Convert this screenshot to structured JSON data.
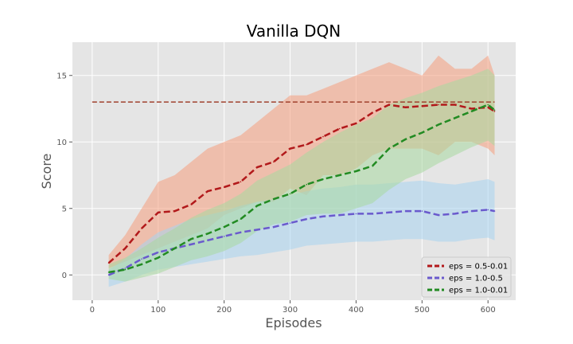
{
  "chart_data": {
    "type": "line",
    "title": "Vanilla DQN",
    "xlabel": "Episodes",
    "ylabel": "Score",
    "xlim": [
      -30,
      642
    ],
    "ylim": [
      -1.9,
      17.5
    ],
    "x_ticks": [
      0,
      100,
      200,
      300,
      400,
      500,
      600
    ],
    "y_ticks": [
      0,
      5,
      10,
      15
    ],
    "grid": true,
    "background": "#e5e5e5",
    "legend_position": "bottom-right",
    "reference_line": {
      "y": 13,
      "color": "#a0412d",
      "style": "dashed"
    },
    "series": [
      {
        "name": "eps = 0.5-0.01",
        "color": "#b2191b",
        "band_color": "#f59f7e",
        "x": [
          25,
          50,
          75,
          100,
          125,
          150,
          175,
          200,
          225,
          250,
          275,
          300,
          325,
          350,
          375,
          400,
          425,
          450,
          475,
          500,
          525,
          550,
          575,
          600,
          610
        ],
        "y": [
          0.9,
          2.0,
          3.5,
          4.7,
          4.8,
          5.3,
          6.3,
          6.6,
          7.0,
          8.1,
          8.5,
          9.5,
          9.8,
          10.4,
          11.0,
          11.4,
          12.2,
          12.8,
          12.6,
          12.7,
          12.8,
          12.8,
          12.5,
          12.6,
          12.3
        ],
        "upper": [
          1.5,
          3.0,
          5.0,
          7.0,
          7.5,
          8.5,
          9.5,
          10.0,
          10.5,
          11.5,
          12.5,
          13.5,
          13.5,
          14.0,
          14.5,
          15.0,
          15.5,
          16.0,
          15.5,
          15.0,
          16.5,
          15.5,
          15.5,
          16.5,
          15.0
        ],
        "lower": [
          0.5,
          1.0,
          1.5,
          2.0,
          2.5,
          3.0,
          3.5,
          4.5,
          5.0,
          5.5,
          5.5,
          6.5,
          6.0,
          7.5,
          7.5,
          8.0,
          9.0,
          9.5,
          9.5,
          9.5,
          9.0,
          10.0,
          10.0,
          9.5,
          9.0
        ]
      },
      {
        "name": "eps = 1.0-0.5",
        "color": "#6a5acd",
        "band_color": "#a8d4f0",
        "x": [
          25,
          50,
          75,
          100,
          125,
          150,
          175,
          200,
          225,
          250,
          275,
          300,
          325,
          350,
          375,
          400,
          425,
          450,
          475,
          500,
          525,
          550,
          575,
          600,
          610
        ],
        "y": [
          0.0,
          0.5,
          1.2,
          1.7,
          2.0,
          2.3,
          2.6,
          2.9,
          3.2,
          3.4,
          3.6,
          3.9,
          4.2,
          4.4,
          4.5,
          4.6,
          4.6,
          4.7,
          4.8,
          4.8,
          4.5,
          4.6,
          4.8,
          4.9,
          4.8
        ],
        "upper": [
          0.4,
          1.2,
          2.3,
          3.2,
          3.7,
          4.2,
          4.5,
          4.8,
          5.2,
          5.5,
          5.7,
          6.0,
          6.3,
          6.5,
          6.6,
          6.8,
          6.8,
          6.9,
          7.0,
          7.1,
          6.9,
          6.8,
          7.0,
          7.2,
          7.0
        ],
        "lower": [
          -0.9,
          -0.5,
          0.0,
          0.4,
          0.6,
          0.8,
          1.0,
          1.2,
          1.4,
          1.5,
          1.7,
          1.9,
          2.2,
          2.3,
          2.4,
          2.5,
          2.5,
          2.6,
          2.7,
          2.7,
          2.5,
          2.5,
          2.7,
          2.8,
          2.6
        ]
      },
      {
        "name": "eps = 1.0-0.01",
        "color": "#228b22",
        "band_color": "#a8d8a0",
        "x": [
          25,
          50,
          75,
          100,
          125,
          150,
          175,
          200,
          225,
          250,
          275,
          300,
          325,
          350,
          375,
          400,
          425,
          450,
          475,
          500,
          525,
          550,
          575,
          600,
          610
        ],
        "y": [
          0.2,
          0.4,
          0.8,
          1.3,
          2.0,
          2.7,
          3.1,
          3.6,
          4.2,
          5.2,
          5.7,
          6.1,
          6.8,
          7.2,
          7.5,
          7.8,
          8.2,
          9.5,
          10.2,
          10.7,
          11.3,
          11.8,
          12.3,
          12.8,
          12.4
        ],
        "upper": [
          0.8,
          1.3,
          2.0,
          2.8,
          3.5,
          4.3,
          4.9,
          5.4,
          6.1,
          7.1,
          7.7,
          8.3,
          9.2,
          10.0,
          10.7,
          11.3,
          11.8,
          12.8,
          13.3,
          13.7,
          14.2,
          14.6,
          15.0,
          15.5,
          15.0
        ],
        "lower": [
          -0.3,
          -0.5,
          -0.2,
          0.1,
          0.6,
          1.1,
          1.4,
          1.8,
          2.4,
          3.3,
          3.8,
          4.0,
          4.5,
          4.6,
          4.6,
          5.0,
          5.4,
          6.4,
          7.2,
          7.7,
          8.4,
          9.0,
          9.6,
          10.1,
          9.7
        ]
      }
    ]
  }
}
